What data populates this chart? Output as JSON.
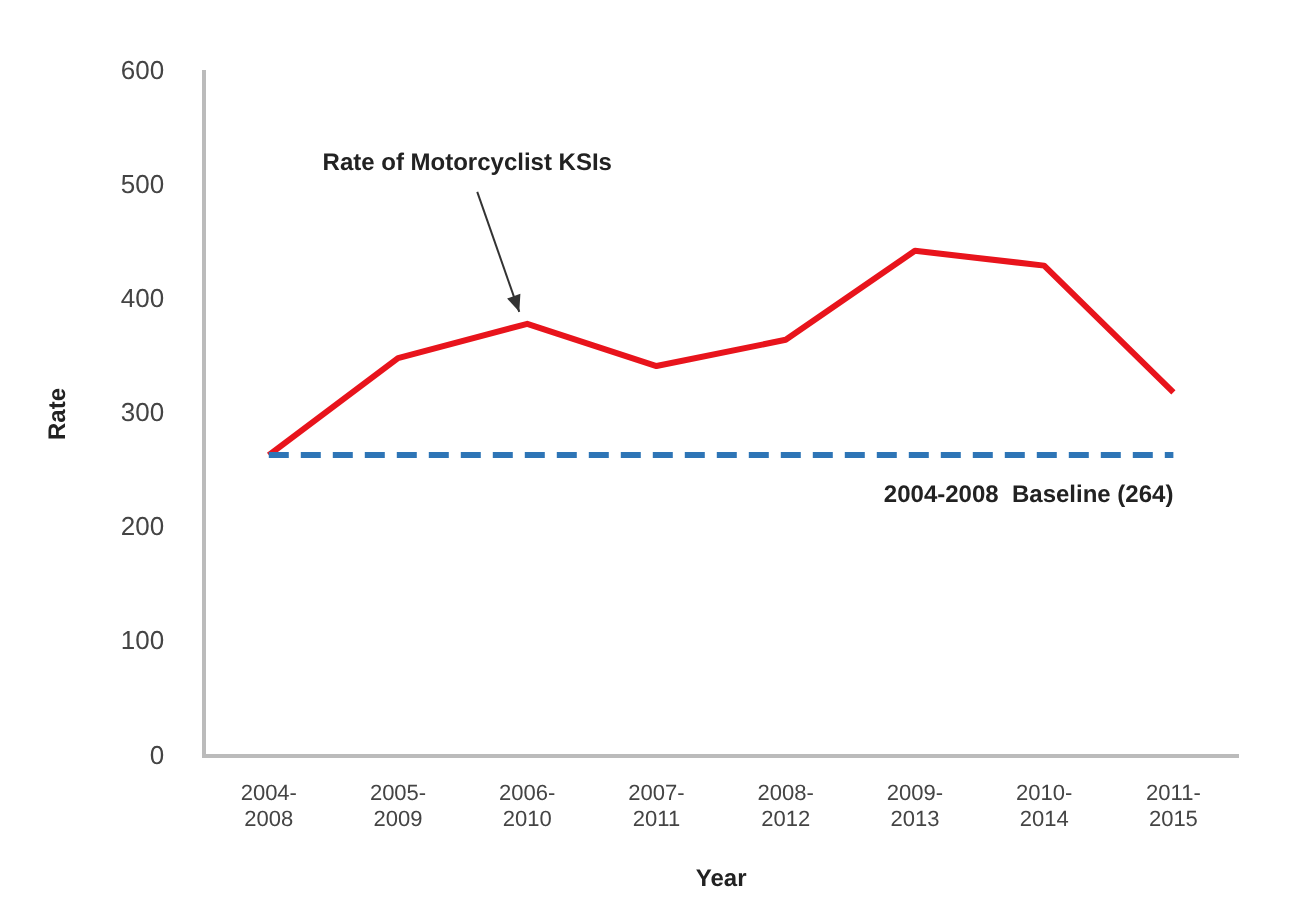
{
  "chart_data": {
    "type": "line",
    "xlabel": "Year",
    "ylabel": "Rate",
    "categories": [
      "2004-2008",
      "2005-2009",
      "2006-2010",
      "2007-2011",
      "2008-2012",
      "2009-2013",
      "2010-2014",
      "2011-2015"
    ],
    "series": [
      {
        "color": "#e8141c",
        "values": [
          264,
          349,
          379,
          342,
          365,
          443,
          430,
          319
        ]
      }
    ],
    "ylim": [
      0,
      600
    ],
    "yticks": [
      0,
      100,
      200,
      300,
      400,
      500,
      600
    ],
    "grid": false,
    "legend": false,
    "marker": "none",
    "line_style": "solid",
    "ref_lines": [
      {
        "axis": "y",
        "value": 264,
        "label": "2004-2008  Baseline (264)",
        "color": "#2e75b6",
        "line_style": "dashed"
      }
    ],
    "annotations": [
      {
        "text": "Rate of Motorcyclist KSIs",
        "x": "2006-2010",
        "y": 379
      }
    ]
  }
}
